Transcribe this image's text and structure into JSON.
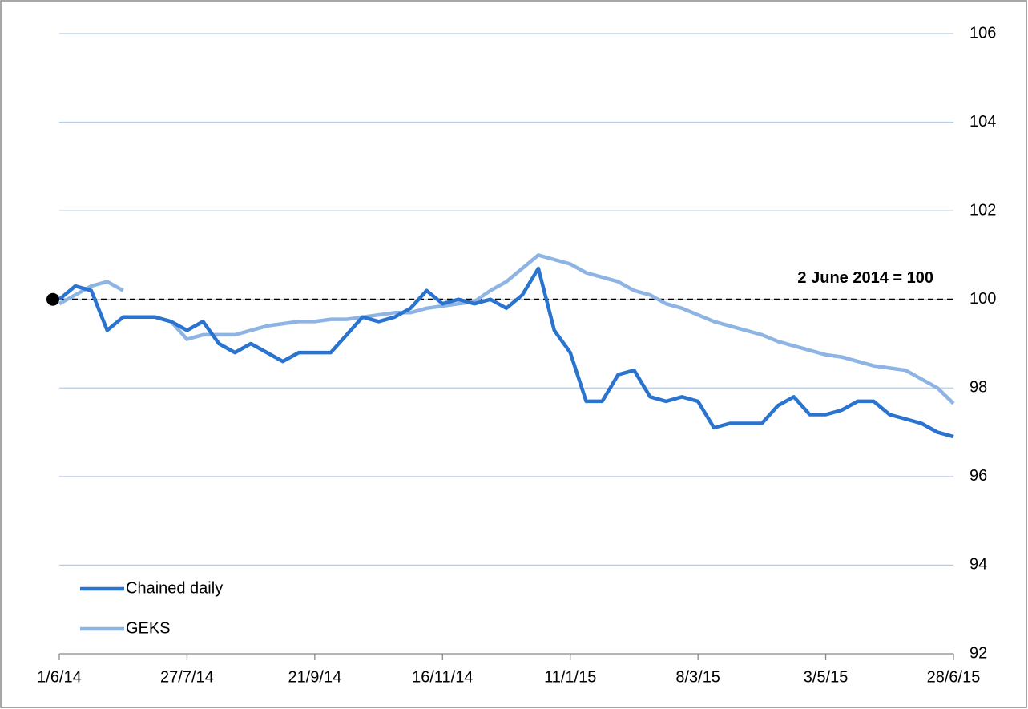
{
  "chart_data": {
    "type": "line",
    "x": [
      "1/6/14",
      "8/6/14",
      "15/6/14",
      "22/6/14",
      "29/6/14",
      "6/7/14",
      "13/7/14",
      "20/7/14",
      "27/7/14",
      "3/8/14",
      "10/8/14",
      "17/8/14",
      "24/8/14",
      "31/8/14",
      "7/9/14",
      "14/9/14",
      "21/9/14",
      "28/9/14",
      "5/10/14",
      "12/10/14",
      "19/10/14",
      "26/10/14",
      "2/11/14",
      "9/11/14",
      "16/11/14",
      "23/11/14",
      "30/11/14",
      "7/12/14",
      "14/12/14",
      "21/12/14",
      "28/12/14",
      "4/1/15",
      "11/1/15",
      "18/1/15",
      "25/1/15",
      "1/2/15",
      "8/2/15",
      "15/2/15",
      "22/2/15",
      "1/3/15",
      "8/3/15",
      "15/3/15",
      "22/3/15",
      "29/3/15",
      "5/4/15",
      "12/4/15",
      "19/4/15",
      "26/4/15",
      "3/5/15",
      "10/5/15",
      "17/5/15",
      "24/5/15",
      "31/5/15",
      "7/6/15",
      "14/6/15",
      "21/6/15",
      "28/6/15"
    ],
    "series": [
      {
        "name": "Chained daily",
        "color": "#2a74d0",
        "values": [
          100.0,
          100.3,
          100.2,
          99.3,
          99.6,
          99.6,
          99.6,
          99.5,
          99.3,
          99.5,
          99.0,
          98.8,
          99.0,
          98.8,
          98.6,
          98.8,
          98.8,
          98.8,
          99.2,
          99.6,
          99.5,
          99.6,
          99.8,
          100.2,
          99.9,
          100.0,
          99.9,
          100.0,
          99.8,
          100.1,
          100.7,
          99.3,
          98.8,
          97.7,
          97.7,
          98.3,
          98.4,
          97.8,
          97.7,
          97.8,
          97.7,
          97.1,
          97.2,
          97.2,
          97.2,
          97.6,
          97.8,
          97.4,
          97.4,
          97.5,
          97.7,
          97.7,
          97.4,
          97.3,
          97.2,
          97.0,
          96.9
        ]
      },
      {
        "name": "GEKS",
        "color": "#8db4e2",
        "values": [
          99.9,
          100.1,
          100.3,
          100.4,
          100.2,
          null,
          99.6,
          99.5,
          99.1,
          99.2,
          99.2,
          99.2,
          99.3,
          99.4,
          99.45,
          99.5,
          99.5,
          99.55,
          99.55,
          99.6,
          99.65,
          99.7,
          99.7,
          99.8,
          99.85,
          99.9,
          99.95,
          100.2,
          100.4,
          100.7,
          101.0,
          100.9,
          100.8,
          100.6,
          100.5,
          100.4,
          100.2,
          100.1,
          99.9,
          99.8,
          99.65,
          99.5,
          99.4,
          99.3,
          99.2,
          99.05,
          98.95,
          98.85,
          98.75,
          98.7,
          98.6,
          98.5,
          98.45,
          98.4,
          98.2,
          98.0,
          97.65
        ]
      }
    ],
    "reference": {
      "label": "2 June 2014 = 100",
      "value": 100
    },
    "xlim": [
      "1/6/14",
      "28/6/15"
    ],
    "xticks": [
      "1/6/14",
      "27/7/14",
      "21/9/14",
      "16/11/14",
      "11/1/15",
      "8/3/15",
      "3/5/15",
      "28/6/15"
    ],
    "ylim": [
      92,
      106
    ],
    "yticks": [
      92,
      94,
      96,
      98,
      100,
      102,
      104,
      106
    ],
    "grid": true,
    "legend": "bottom-left"
  }
}
